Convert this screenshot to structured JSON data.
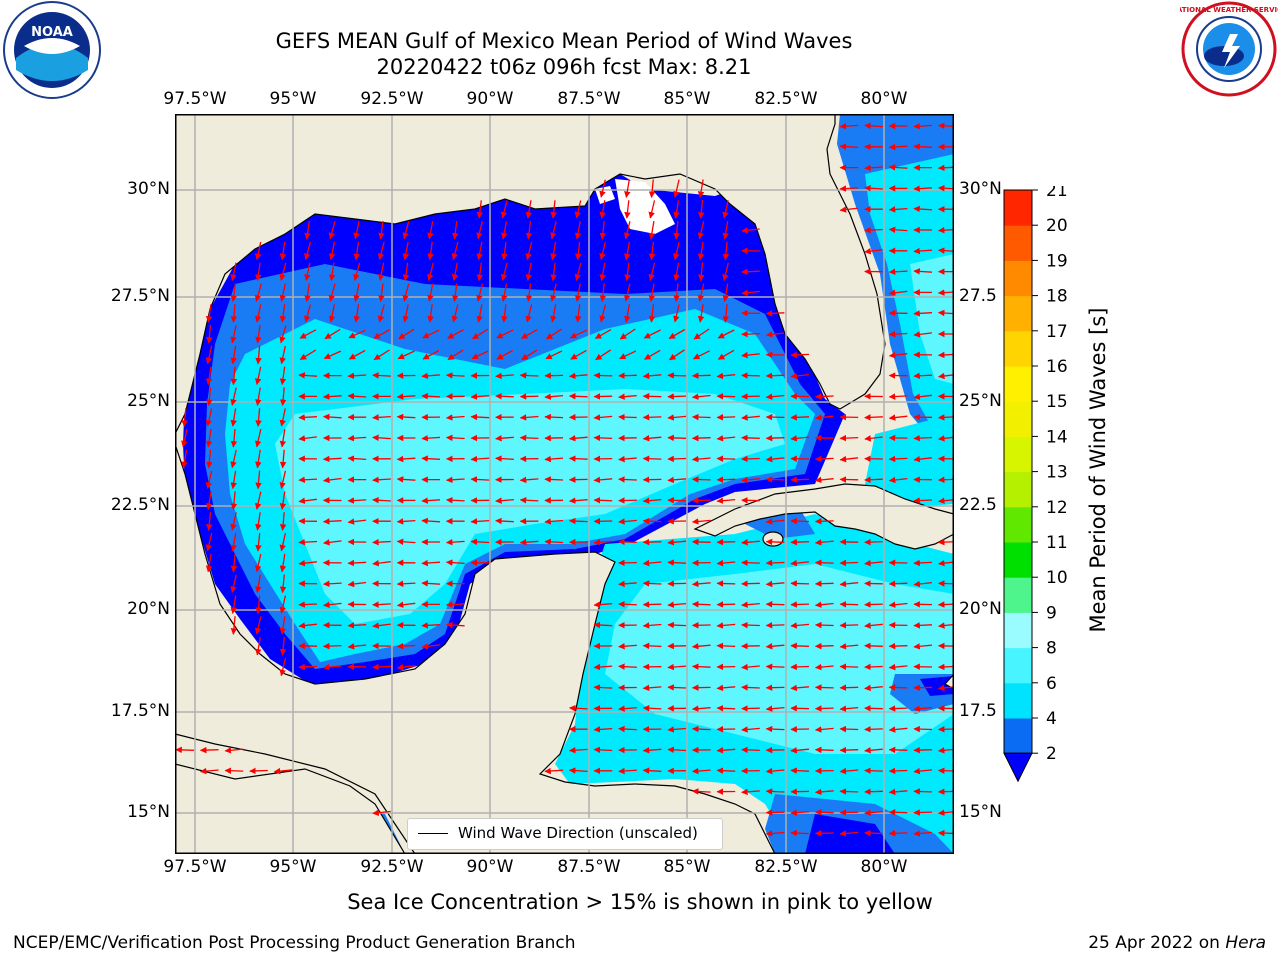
{
  "title_line1": "GEFS MEAN Gulf of Mexico Mean Period of Wind Waves",
  "title_line2": "20220422 t06z 096h fcst   Max: 8.21",
  "lon_labels": [
    "97.5°W",
    "95°W",
    "92.5°W",
    "90°W",
    "87.5°W",
    "85°W",
    "82.5°W",
    "80°W"
  ],
  "lat_labels": [
    "30°N",
    "27.5°N",
    "25°N",
    "22.5°N",
    "20°N",
    "17.5°N",
    "15°N"
  ],
  "lat_labels_right": [
    "30°N",
    "27.5",
    "25°N",
    "22.5",
    "20°N",
    "17.5",
    "15°N"
  ],
  "legend_text": "Wind Wave Direction (unscaled)",
  "colorbar": {
    "label": "Mean Period of Wind Waves [s]",
    "ticks": [
      "2",
      "4",
      "6",
      "8",
      "9",
      "10",
      "11",
      "12",
      "13",
      "14",
      "15",
      "16",
      "17",
      "18",
      "19",
      "20",
      "21"
    ],
    "colors": [
      "#0a6cf2",
      "#00e3ff",
      "#48f4ff",
      "#9bfcff",
      "#4df58c",
      "#00e000",
      "#60e800",
      "#b4f000",
      "#d8f500",
      "#f2ef00",
      "#fff000",
      "#ffd400",
      "#ffb000",
      "#ff8a00",
      "#ff5a00",
      "#ff2600"
    ],
    "under_color": "#0000ff"
  },
  "note": "Sea Ice Concentration > 15% is shown in pink to yellow",
  "footer_left": "NCEP/EMC/Verification Post Processing Product Generation Branch",
  "footer_right_prefix": "25 Apr 2022 on ",
  "footer_right_host": "Hera",
  "logos": {
    "noaa_text": "NOAA",
    "nws_text": "NATIONAL WEATHER SERVICE"
  },
  "colors": {
    "land": "#efecdc",
    "deep_blue": "#0000ff",
    "mid_blue": "#1a7cf5",
    "cyan": "#00eaff",
    "light_cyan": "#5ef6ff",
    "arrow": "#ff0000",
    "grid": "#b0b0b0"
  }
}
